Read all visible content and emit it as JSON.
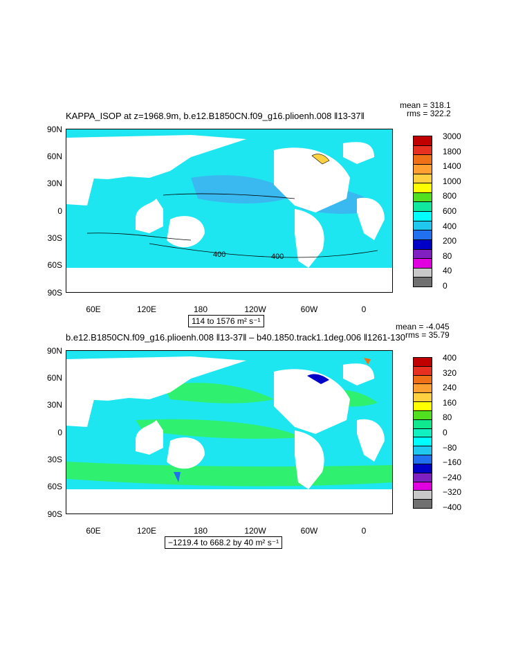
{
  "panels": [
    {
      "title": "KAPPA_ISOP at z=1968.9m, b.e12.B1850CN.f09_g16.plioenh.008 ‖13-37‖",
      "stats": {
        "mean": "mean = 318.1",
        "rms": "rms = 322.2"
      },
      "range_label": "114 to 1576 m² s⁻¹",
      "lat_labels": [
        "90N",
        "60N",
        "30N",
        "0",
        "30S",
        "60S",
        "90S"
      ],
      "lon_labels": [
        "60E",
        "120E",
        "180",
        "120W",
        "60W",
        "0"
      ],
      "contour_labels": [
        "400",
        "400"
      ],
      "colorbar": {
        "labels": [
          "3000",
          "1800",
          "1400",
          "1000",
          "800",
          "600",
          "400",
          "200",
          "80",
          "40",
          "0"
        ],
        "colors": [
          "#c00000",
          "#e83020",
          "#f07018",
          "#ffa030",
          "#ffd040",
          "#ffff00",
          "#50e020",
          "#10e8a0",
          "#00ffff",
          "#20c8f0",
          "#2070f0",
          "#0000c8",
          "#8020c0",
          "#e000e0",
          "#c8c8c8",
          "#707070"
        ]
      },
      "ocean_color": "#1ee6f0"
    },
    {
      "title": "b.e12.B1850CN.f09_g16.plioenh.008 ‖13-37‖ – b40.1850.track1.1deg.006 ‖1261-130",
      "stats": {
        "mean": "mean = -4.045",
        "rms": "rms = 35.79"
      },
      "range_label": "−1219.4 to 668.2 by 40 m² s⁻¹",
      "lat_labels": [
        "90N",
        "60N",
        "30N",
        "0",
        "30S",
        "60S",
        "90S"
      ],
      "lon_labels": [
        "60E",
        "120E",
        "180",
        "120W",
        "60W",
        "0"
      ],
      "colorbar": {
        "labels": [
          "400",
          "320",
          "240",
          "160",
          "80",
          "0",
          "−80",
          "−160",
          "−240",
          "−320",
          "−400"
        ],
        "colors": [
          "#c00000",
          "#e83020",
          "#f07018",
          "#ffa030",
          "#ffd040",
          "#ffff00",
          "#50e020",
          "#10e890",
          "#10f0c0",
          "#00ffff",
          "#20c8f0",
          "#2070f0",
          "#0000c8",
          "#8020c0",
          "#e000e0",
          "#c8c8c8",
          "#707070"
        ]
      },
      "ocean_color": "#1ee6f0",
      "anomaly_color": "#30f070"
    }
  ]
}
